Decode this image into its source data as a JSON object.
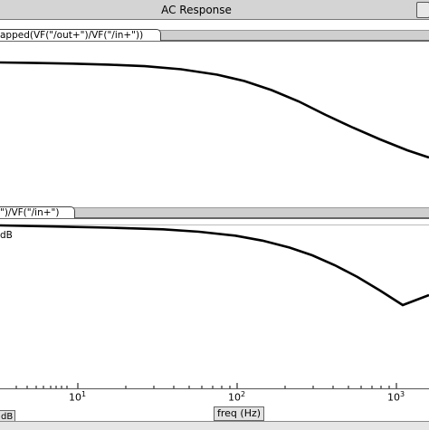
{
  "window": {
    "title": "AC Response"
  },
  "tabs": {
    "top_trace": "apped(VF(\"/out+\")/VF(\"/in+\"))",
    "bottom_trace": "\")/VF(\"/in+\")"
  },
  "bottom_pane": {
    "y_unit_label": "dB"
  },
  "x_axis": {
    "label": "freq (Hz)",
    "ticks": [
      {
        "base": "10",
        "exp": "1"
      },
      {
        "base": "10",
        "exp": "2"
      },
      {
        "base": "10",
        "exp": "3"
      }
    ],
    "scale": "log"
  },
  "y_tag": "dB"
}
